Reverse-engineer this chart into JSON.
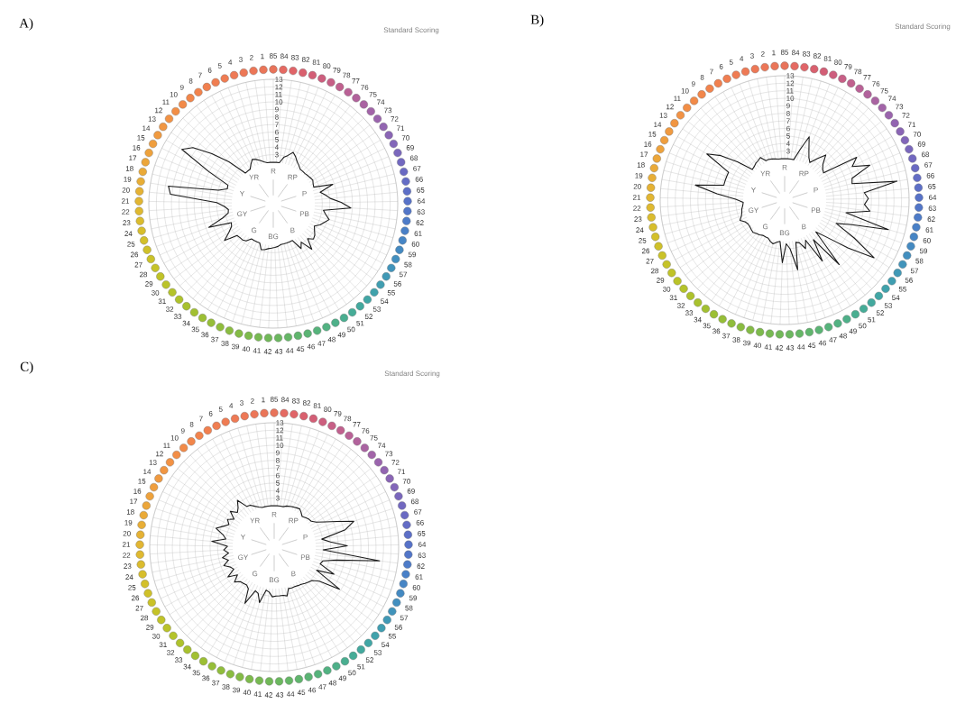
{
  "chart_data": [
    {
      "type": "radar",
      "title": "A)",
      "subtitle": "Standard Scoring",
      "categories": [
        "85",
        "84",
        "83",
        "82",
        "81",
        "80",
        "79",
        "78",
        "77",
        "76",
        "75",
        "74",
        "73",
        "72",
        "71",
        "70",
        "69",
        "68",
        "67",
        "66",
        "65",
        "64",
        "63",
        "62",
        "61",
        "60",
        "59",
        "58",
        "57",
        "56",
        "55",
        "54",
        "53",
        "52",
        "51",
        "50",
        "49",
        "48",
        "47",
        "46",
        "45",
        "44",
        "43",
        "42",
        "41",
        "40",
        "39",
        "38",
        "37",
        "36",
        "35",
        "34",
        "33",
        "32",
        "31",
        "30",
        "29",
        "28",
        "27",
        "26",
        "25",
        "24",
        "23",
        "22",
        "21",
        "20",
        "19",
        "18",
        "17",
        "16",
        "15",
        "14",
        "13",
        "12",
        "11",
        "10",
        "9",
        "8",
        "7",
        "6",
        "5",
        "4",
        "3",
        "2",
        "1"
      ],
      "colors": [
        "#e8735a",
        "#e56a62",
        "#e06468",
        "#d9606e",
        "#d35e76",
        "#cd5e7e",
        "#c75f86",
        "#c1608e",
        "#ba6196",
        "#b2629c",
        "#aa63a2",
        "#a264a8",
        "#9a64ad",
        "#9265b1",
        "#8a65b5",
        "#8266b9",
        "#7a67bc",
        "#7268c0",
        "#6a6ac3",
        "#636cc5",
        "#5d6fc7",
        "#5772c8",
        "#5276c8",
        "#4d7bc8",
        "#4980c7",
        "#4685c5",
        "#448ac2",
        "#428fbf",
        "#4194bb",
        "#4099b6",
        "#409eb1",
        "#40a2ab",
        "#41a6a5",
        "#43a99e",
        "#46ac97",
        "#4aae90",
        "#4eb089",
        "#52b282",
        "#56b37b",
        "#5bb474",
        "#60b56d",
        "#65b666",
        "#6bb75f",
        "#71b858",
        "#77b952",
        "#7dba4c",
        "#84bb46",
        "#8abc41",
        "#90bd3c",
        "#96be38",
        "#9cbf34",
        "#a2c031",
        "#a8c12e",
        "#aec22c",
        "#b4c32a",
        "#bac329",
        "#c0c328",
        "#c5c328",
        "#cac228",
        "#cfc129",
        "#d3c02a",
        "#d7be2c",
        "#dbbc2e",
        "#dfb930",
        "#e2b632",
        "#e5b234",
        "#e8ae36",
        "#eaaa38",
        "#eca63a",
        "#eea23c",
        "#ef9e3e",
        "#f09a40",
        "#f19642",
        "#f29244",
        "#f28e46",
        "#f28a48",
        "#f2864a",
        "#f2834c",
        "#f1804f",
        "#f07e51",
        "#ef7c53",
        "#ee7a55",
        "#ed7856",
        "#ec7657",
        "#ea7558"
      ],
      "series": [
        {
          "color": "#1a1a1a",
          "values": [
            2,
            2,
            2,
            2.8,
            3.2,
            3.8,
            3.4,
            2.9,
            2.6,
            2.3,
            2.3,
            2.3,
            2.4,
            2.5,
            2.6,
            2.4,
            2.3,
            4.8,
            2.9,
            3.5,
            4.1,
            5.5,
            6.8,
            3.2,
            3.6,
            4.2,
            3.7,
            3.3,
            2.7,
            3,
            3.4,
            3.6,
            3,
            4.4,
            2.8,
            3.5,
            2,
            2,
            2,
            2,
            2,
            2.2,
            2.3,
            2.4,
            2.5,
            2.7,
            2.8,
            2,
            2,
            2,
            2,
            2.6,
            2.8,
            2.8,
            2.9,
            4.6,
            3.5,
            2.8,
            2.6,
            5.6,
            3.5,
            2.6,
            2.5,
            3,
            4,
            10.2,
            10.6,
            4,
            2.9,
            3,
            6,
            10.6,
            9.5,
            7,
            4.6,
            2,
            2,
            2,
            2.5,
            3,
            2.8,
            2.5,
            2.2,
            2,
            2
          ]
        }
      ],
      "ylim": [
        -3.5,
        13
      ],
      "yticks": [
        3,
        4,
        5,
        6,
        7,
        8,
        9,
        10,
        11,
        12,
        13
      ],
      "grid": true,
      "annotations": [
        "R",
        "RP",
        "P",
        "PB",
        "B",
        "BG",
        "G",
        "GY",
        "Y",
        "YR"
      ]
    },
    {
      "type": "radar",
      "title": "B)",
      "subtitle": "Standard Scoring",
      "categories": [
        "85",
        "84",
        "83",
        "82",
        "81",
        "80",
        "79",
        "78",
        "77",
        "76",
        "75",
        "74",
        "73",
        "72",
        "71",
        "70",
        "69",
        "68",
        "67",
        "66",
        "65",
        "64",
        "63",
        "62",
        "61",
        "60",
        "59",
        "58",
        "57",
        "56",
        "55",
        "54",
        "53",
        "52",
        "51",
        "50",
        "49",
        "48",
        "47",
        "46",
        "45",
        "44",
        "43",
        "42",
        "41",
        "40",
        "39",
        "38",
        "37",
        "36",
        "35",
        "34",
        "33",
        "32",
        "31",
        "30",
        "29",
        "28",
        "27",
        "26",
        "25",
        "24",
        "23",
        "22",
        "21",
        "20",
        "19",
        "18",
        "17",
        "16",
        "15",
        "14",
        "13",
        "12",
        "11",
        "10",
        "9",
        "8",
        "7",
        "6",
        "5",
        "4",
        "3",
        "2",
        "1"
      ],
      "colors": [
        "#e8735a",
        "#e56a62",
        "#e06468",
        "#d9606e",
        "#d35e76",
        "#cd5e7e",
        "#c75f86",
        "#c1608e",
        "#ba6196",
        "#b2629c",
        "#aa63a2",
        "#a264a8",
        "#9a64ad",
        "#9265b1",
        "#8a65b5",
        "#8266b9",
        "#7a67bc",
        "#7268c0",
        "#6a6ac3",
        "#636cc5",
        "#5d6fc7",
        "#5772c8",
        "#5276c8",
        "#4d7bc8",
        "#4980c7",
        "#4685c5",
        "#448ac2",
        "#428fbf",
        "#4194bb",
        "#4099b6",
        "#409eb1",
        "#40a2ab",
        "#41a6a5",
        "#43a99e",
        "#46ac97",
        "#4aae90",
        "#4eb089",
        "#52b282",
        "#56b37b",
        "#5bb474",
        "#60b56d",
        "#65b666",
        "#6bb75f",
        "#71b858",
        "#77b952",
        "#7dba4c",
        "#84bb46",
        "#8abc41",
        "#90bd3c",
        "#96be38",
        "#9cbf34",
        "#a2c031",
        "#a8c12e",
        "#aec22c",
        "#b4c32a",
        "#bac329",
        "#c0c328",
        "#c5c328",
        "#cac228",
        "#cfc129",
        "#d3c02a",
        "#d7be2c",
        "#dbbc2e",
        "#dfb930",
        "#e2b632",
        "#e5b234",
        "#e8ae36",
        "#eaaa38",
        "#eca63a",
        "#eea23c",
        "#ef9e3e",
        "#f09a40",
        "#f19642",
        "#f29244",
        "#f28e46",
        "#f28a48",
        "#f2864a",
        "#f2834c",
        "#f1804f",
        "#f07e51",
        "#ef7c53",
        "#ee7a55",
        "#ed7856",
        "#ec7657",
        "#ea7558"
      ],
      "series": [
        {
          "color": "#1a1a1a",
          "values": [
            2,
            2,
            2,
            2,
            3.5,
            5.5,
            4,
            3,
            2.5,
            3.5,
            4.6,
            3.5,
            3,
            2.8,
            7.6,
            6.5,
            8.7,
            5.9,
            5.7,
            11.6,
            7.1,
            7.6,
            7.1,
            7.9,
            4.8,
            10.8,
            6,
            4,
            7,
            10.6,
            7,
            4,
            2.4,
            7.7,
            3,
            6,
            2.5,
            3.5,
            2.5,
            2.3,
            5.9,
            3,
            2.3,
            4.8,
            2,
            2.2,
            2.5,
            2.3,
            2,
            2,
            2,
            2.2,
            2.3,
            2.5,
            2.4,
            2.3,
            2.3,
            2.5,
            3,
            2.6,
            2.4,
            2.3,
            2.1,
            2,
            3,
            5.5,
            8.5,
            4.8,
            4.8,
            4.8,
            4.8,
            8.5,
            6.8,
            4.5,
            2.4,
            2.5,
            2.7,
            2.8,
            3,
            2.3,
            2.3,
            2.2,
            2.1,
            2,
            2
          ]
        }
      ],
      "ylim": [
        -3.5,
        13
      ],
      "yticks": [
        3,
        4,
        5,
        6,
        7,
        8,
        9,
        10,
        11,
        12,
        13
      ],
      "grid": true,
      "annotations": [
        "R",
        "RP",
        "P",
        "PB",
        "B",
        "BG",
        "G",
        "GY",
        "Y",
        "YR"
      ]
    },
    {
      "type": "radar",
      "title": "C)",
      "subtitle": "Standard Scoring",
      "categories": [
        "85",
        "84",
        "83",
        "82",
        "81",
        "80",
        "79",
        "78",
        "77",
        "76",
        "75",
        "74",
        "73",
        "72",
        "71",
        "70",
        "69",
        "68",
        "67",
        "66",
        "65",
        "64",
        "63",
        "62",
        "61",
        "60",
        "59",
        "58",
        "57",
        "56",
        "55",
        "54",
        "53",
        "52",
        "51",
        "50",
        "49",
        "48",
        "47",
        "46",
        "45",
        "44",
        "43",
        "42",
        "41",
        "40",
        "39",
        "38",
        "37",
        "36",
        "35",
        "34",
        "33",
        "32",
        "31",
        "30",
        "29",
        "28",
        "27",
        "26",
        "25",
        "24",
        "23",
        "22",
        "21",
        "20",
        "19",
        "18",
        "17",
        "16",
        "15",
        "14",
        "13",
        "12",
        "11",
        "10",
        "9",
        "8",
        "7",
        "6",
        "5",
        "4",
        "3",
        "2",
        "1"
      ],
      "colors": [
        "#e8735a",
        "#e56a62",
        "#e06468",
        "#d9606e",
        "#d35e76",
        "#cd5e7e",
        "#c75f86",
        "#c1608e",
        "#ba6196",
        "#b2629c",
        "#aa63a2",
        "#a264a8",
        "#9a64ad",
        "#9265b1",
        "#8a65b5",
        "#8266b9",
        "#7a67bc",
        "#7268c0",
        "#6a6ac3",
        "#636cc5",
        "#5d6fc7",
        "#5772c8",
        "#5276c8",
        "#4d7bc8",
        "#4980c7",
        "#4685c5",
        "#448ac2",
        "#428fbf",
        "#4194bb",
        "#4099b6",
        "#409eb1",
        "#40a2ab",
        "#41a6a5",
        "#43a99e",
        "#46ac97",
        "#4aae90",
        "#4eb089",
        "#52b282",
        "#56b37b",
        "#5bb474",
        "#60b56d",
        "#65b666",
        "#6bb75f",
        "#71b858",
        "#77b952",
        "#7dba4c",
        "#84bb46",
        "#8abc41",
        "#90bd3c",
        "#96be38",
        "#9cbf34",
        "#a2c031",
        "#a8c12e",
        "#aec22c",
        "#b4c32a",
        "#bac329",
        "#c0c328",
        "#c5c328",
        "#cac228",
        "#cfc129",
        "#d3c02a",
        "#d7be2c",
        "#dbbc2e",
        "#dfb930",
        "#e2b632",
        "#e5b234",
        "#e8ae36",
        "#eaaa38",
        "#eca63a",
        "#eea23c",
        "#ef9e3e",
        "#f09a40",
        "#f19642",
        "#f29244",
        "#f28e46",
        "#f28a48",
        "#f2864a",
        "#f2834c",
        "#f1804f",
        "#f07e51",
        "#ef7c53",
        "#ee7a55",
        "#ed7856",
        "#ec7657",
        "#ea7558"
      ],
      "series": [
        {
          "color": "#1a1a1a",
          "values": [
            2,
            2,
            2,
            2,
            2.2,
            2.3,
            2.4,
            2.5,
            2.6,
            2.3,
            2,
            2.2,
            2.4,
            2.5,
            3,
            4,
            5.5,
            7.6,
            6.2,
            2.9,
            4,
            6.2,
            3,
            10.6,
            5,
            3.2,
            3,
            5.2,
            2.9,
            6.8,
            4,
            3.2,
            3,
            2.8,
            2.6,
            2.5,
            2.4,
            2.4,
            2.3,
            3.2,
            3,
            3,
            3,
            3.1,
            2.5,
            2.3,
            4.1,
            3,
            2.8,
            4.9,
            3,
            2.7,
            2.8,
            2.9,
            3.5,
            2.6,
            3.8,
            2.6,
            2.9,
            3.6,
            2.8,
            3.5,
            2.6,
            3.2,
            2.7,
            4.8,
            3,
            3.5,
            4.6,
            3.8,
            3.2,
            3.7,
            3,
            4,
            3.2,
            3.6,
            4.4,
            3,
            2.9,
            2.5,
            2.2,
            2,
            2,
            2,
            2
          ]
        }
      ],
      "ylim": [
        -3.5,
        13
      ],
      "yticks": [
        3,
        4,
        5,
        6,
        7,
        8,
        9,
        10,
        11,
        12,
        13
      ],
      "grid": true,
      "annotations": [
        "R",
        "RP",
        "P",
        "PB",
        "B",
        "BG",
        "G",
        "GY",
        "Y",
        "YR"
      ]
    }
  ]
}
